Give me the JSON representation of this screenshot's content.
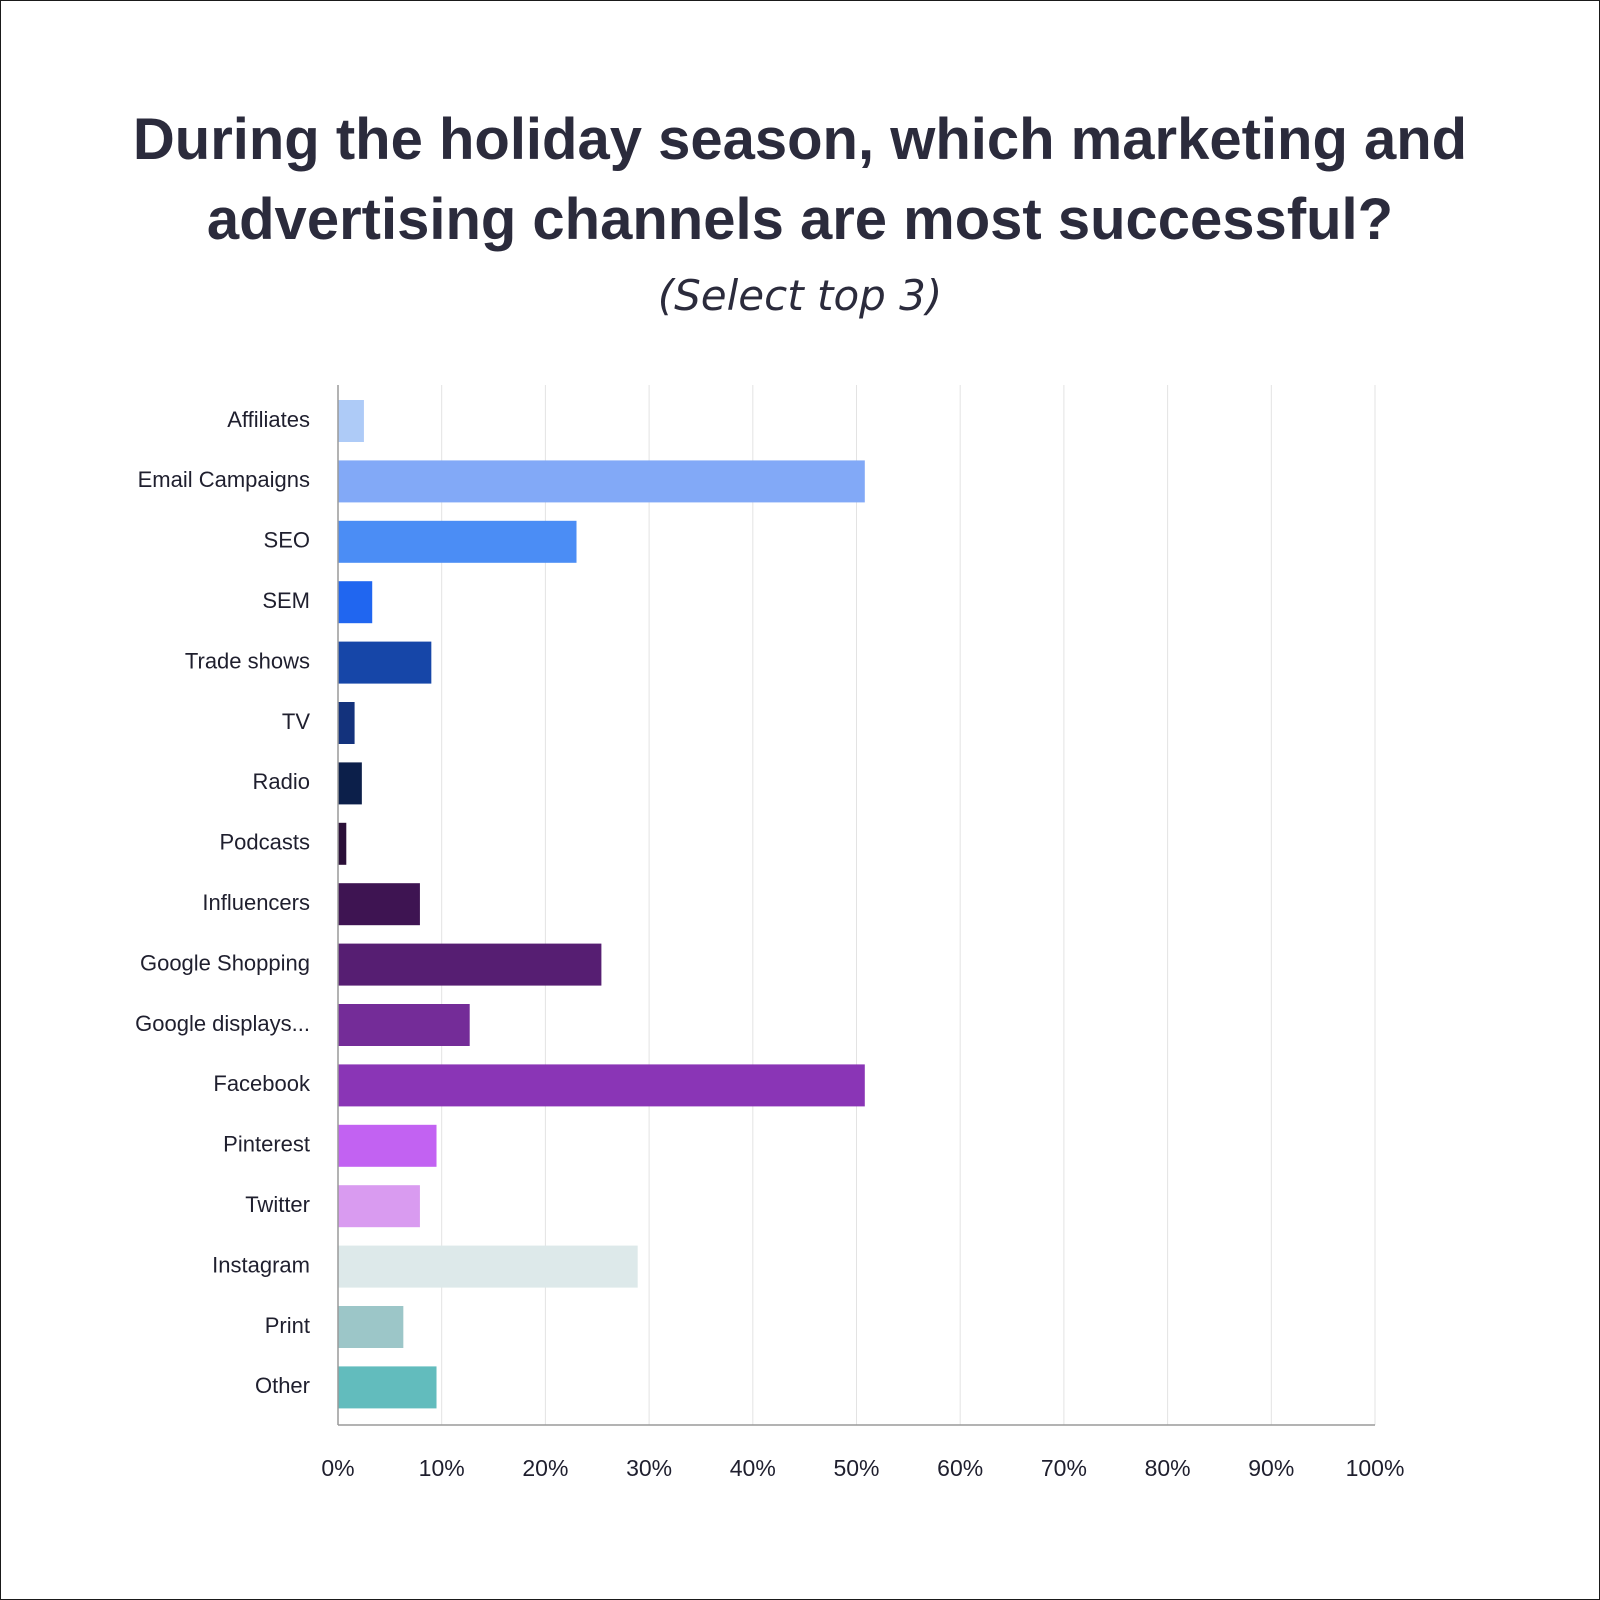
{
  "chart_data": {
    "type": "bar",
    "orientation": "horizontal",
    "title": "During the holiday season, which marketing and advertising channels are most successful?",
    "subtitle": "(Select top 3)",
    "categories": [
      "Affiliates",
      "Email Campaigns",
      "SEO",
      "SEM",
      "Trade shows",
      "TV",
      "Radio",
      "Podcasts",
      "Influencers",
      "Google Shopping",
      "Google displays...",
      "Facebook",
      "Pinterest",
      "Twitter",
      "Instagram",
      "Print",
      "Other"
    ],
    "values": [
      2.5,
      50.8,
      23.0,
      3.3,
      9.0,
      1.6,
      2.3,
      0.8,
      7.9,
      25.4,
      12.7,
      50.8,
      9.5,
      7.9,
      28.9,
      6.3,
      9.5
    ],
    "colors": [
      "#aecbf7",
      "#82a9f7",
      "#4b8df5",
      "#2066f0",
      "#1646a8",
      "#13327c",
      "#0c1f4a",
      "#2a0f38",
      "#3e1452",
      "#561e72",
      "#742c98",
      "#8a35b6",
      "#c262f2",
      "#d99bf0",
      "#dde9ea",
      "#9cc6c8",
      "#62bcbd"
    ],
    "xlabel": "",
    "ylabel": "",
    "xlim": [
      0,
      100
    ],
    "x_ticks": [
      "0%",
      "10%",
      "20%",
      "30%",
      "40%",
      "50%",
      "60%",
      "70%",
      "80%",
      "90%",
      "100%"
    ],
    "grid": true,
    "legend": "none"
  }
}
